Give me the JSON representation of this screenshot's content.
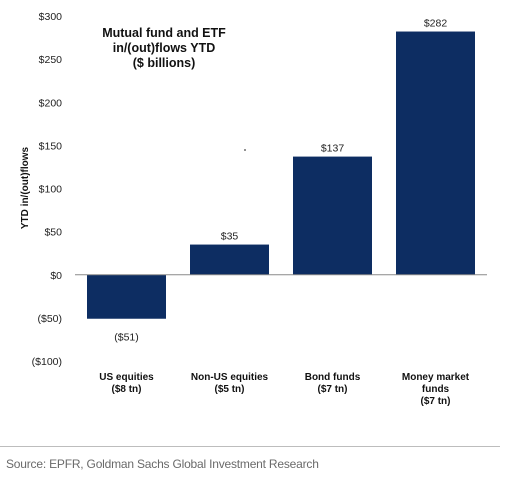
{
  "chart_data": {
    "type": "bar",
    "title_lines": [
      "Mutual fund and ETF",
      "in/(out)flows YTD",
      "($ billions)"
    ],
    "ylabel": "YTD in/(out)flows",
    "xlabel": "",
    "ylim": [
      -100,
      300
    ],
    "y_ticks": [
      -100,
      -50,
      0,
      50,
      100,
      150,
      200,
      250,
      300
    ],
    "y_tick_labels": [
      "($100)",
      "($50)",
      "$0",
      "$50",
      "$100",
      "$150",
      "$200",
      "$250",
      "$300"
    ],
    "categories": [
      [
        "US equities",
        "($8 tn)"
      ],
      [
        "Non-US equities",
        "($5 tn)"
      ],
      [
        "Bond funds",
        "($7 tn)"
      ],
      [
        "Money market",
        "funds",
        "($7 tn)"
      ]
    ],
    "values": [
      -51,
      35,
      137,
      282
    ],
    "data_labels": [
      "($51)",
      "$35",
      "$137",
      "$282"
    ],
    "bar_color": "#0d2d62",
    "grid": false,
    "legend": "none"
  },
  "source": "Source: EPFR, Goldman Sachs Global Investment Research"
}
